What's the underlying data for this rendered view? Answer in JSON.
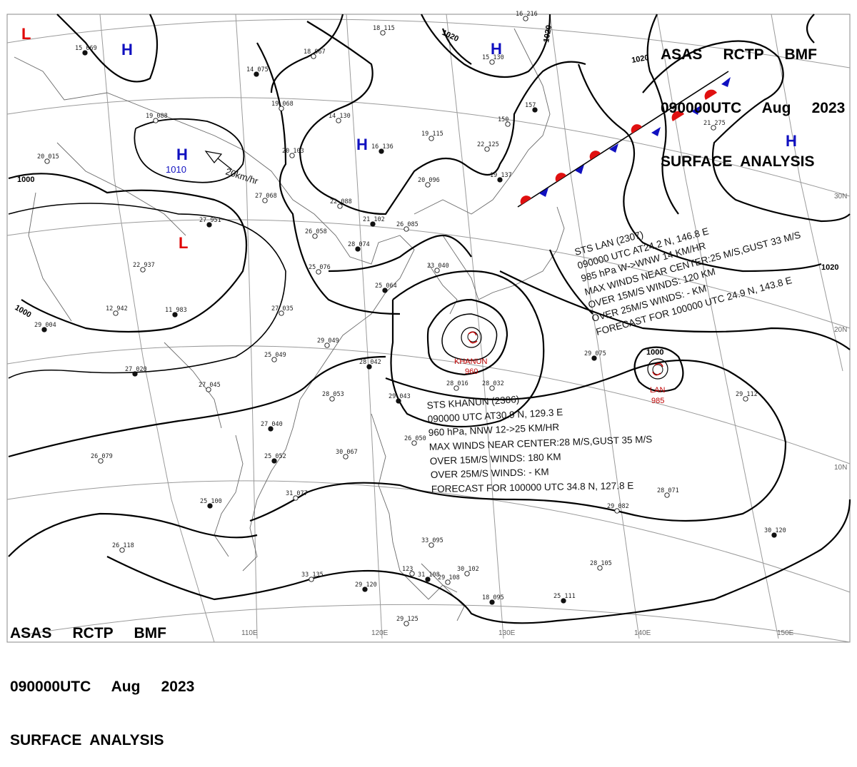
{
  "header": {
    "line1": "ASAS     RCTP     BMF",
    "line2": "090000UTC     Aug     2023",
    "line3": "SURFACE  ANALYSIS"
  },
  "footer": {
    "line1": "ASAS     RCTP     BMF",
    "line2": "090000UTC     Aug     2023",
    "line3": "SURFACE  ANALYSIS"
  },
  "longitude_labels": [
    "110E",
    "120E",
    "130E",
    "140E",
    "150E"
  ],
  "latitude_labels": [
    "30N",
    "20N",
    "10N"
  ],
  "isobar_labels": [
    "1000",
    "1000",
    "1010",
    "1020",
    "1020",
    "1020",
    "1020",
    "1000"
  ],
  "pressure_centers": [
    {
      "letter": "L",
      "color": "#e00000"
    },
    {
      "letter": "L",
      "color": "#e00000"
    },
    {
      "letter": "H",
      "color": "#1010c0"
    },
    {
      "letter": "H",
      "color": "#1010c0"
    },
    {
      "letter": "H",
      "color": "#1010c0"
    },
    {
      "letter": "H",
      "color": "#1010c0"
    },
    {
      "letter": "H",
      "color": "#1010c0"
    }
  ],
  "center_values": [
    "1010"
  ],
  "motion_label": "20km/hr",
  "typhoons": [
    {
      "name": "KHANUN",
      "pressure": "960"
    },
    {
      "name": "LAN",
      "pressure": "985"
    }
  ],
  "storm_khanun": [
    "STS  KHANUN  (2306)",
    "090000 UTC  AT30.9 N, 129.3 E",
    "960 hPa, NNW  12->25 KM/HR",
    "MAX WINDS NEAR CENTER:28 M/S,GUST 35 M/S",
    "OVER 15M/S WINDS: 180 KM",
    "OVER 25M/S WINDS: - KM",
    "FORECAST FOR 100000 UTC 34.8 N, 127.8 E"
  ],
  "storm_lan": [
    "STS  LAN  (2307)",
    "090000 UTC  AT24.2 N, 146.8 E",
    "985 hPa  W->WNW  14 KM/HR",
    "MAX WINDS NEAR CENTER:25 M/S,GUST 33 M/S",
    "OVER 15M/S WINDS: 120 KM",
    "OVER 25M/S WINDS: - KM",
    "FORECAST FOR 100000 UTC 24.9 N, 143.8 E"
  ],
  "station_obs": [
    "15  069",
    "18  115",
    "18  067",
    "14  075",
    "19  068",
    "14  130",
    "16  136",
    "19  115",
    "22  125",
    "19  137",
    "20  096",
    "150",
    "157",
    "20  103",
    "22  088",
    "21  102",
    "26  085",
    "26  058",
    "28  074",
    "25  076",
    "23  040",
    "25  064",
    "27  068",
    "19  088",
    "27  951",
    "22  937",
    "12  942",
    "11  983",
    "20  015",
    "27  035",
    "27  020",
    "25  049",
    "29  049",
    "28  042",
    "27  045",
    "28  053",
    "29  043",
    "28  016",
    "28  032",
    "27  040",
    "26  050",
    "26  079",
    "25  052",
    "30  067",
    "31  077",
    "25  100",
    "26  118",
    "33  135",
    "29  120",
    "29  125",
    "123",
    "31  108",
    "30  102",
    "28  105",
    "25  111",
    "28  071",
    "29  082",
    "30  120",
    "29  112",
    "21  275",
    "29  075",
    "33  095",
    "29  108",
    "18  095",
    "16  216",
    "15  130",
    "29  004"
  ]
}
